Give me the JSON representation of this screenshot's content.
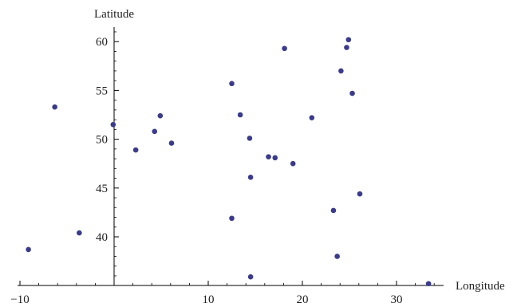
{
  "chart_data": {
    "type": "scatter",
    "xlabel": "Longitude",
    "ylabel": "Latitude",
    "xlim": [
      -11,
      34
    ],
    "ylim": [
      35.2,
      61.5
    ],
    "x_ticks": [
      -10,
      10,
      20,
      30
    ],
    "x_tick_labels": [
      "−10",
      "10",
      "20",
      "30"
    ],
    "y_ticks": [
      40,
      45,
      50,
      55,
      60
    ],
    "y_tick_labels": [
      "40",
      "45",
      "50",
      "55",
      "60"
    ],
    "grid": false,
    "point_color": "#3b3b8c",
    "points": [
      {
        "x": -9.1,
        "y": 38.7
      },
      {
        "x": -6.3,
        "y": 53.3
      },
      {
        "x": -3.7,
        "y": 40.4
      },
      {
        "x": -0.1,
        "y": 51.5
      },
      {
        "x": 2.3,
        "y": 48.9
      },
      {
        "x": 4.3,
        "y": 50.8
      },
      {
        "x": 4.9,
        "y": 52.4
      },
      {
        "x": 6.1,
        "y": 49.6
      },
      {
        "x": 12.5,
        "y": 55.7
      },
      {
        "x": 12.5,
        "y": 41.9
      },
      {
        "x": 13.4,
        "y": 52.5
      },
      {
        "x": 14.4,
        "y": 50.1
      },
      {
        "x": 14.5,
        "y": 46.1
      },
      {
        "x": 14.5,
        "y": 35.9
      },
      {
        "x": 16.4,
        "y": 48.2
      },
      {
        "x": 17.1,
        "y": 48.1
      },
      {
        "x": 18.1,
        "y": 59.3
      },
      {
        "x": 19.0,
        "y": 47.5
      },
      {
        "x": 21.0,
        "y": 52.2
      },
      {
        "x": 23.3,
        "y": 42.7
      },
      {
        "x": 23.7,
        "y": 38.0
      },
      {
        "x": 24.1,
        "y": 57.0
      },
      {
        "x": 24.7,
        "y": 59.4
      },
      {
        "x": 24.9,
        "y": 60.2
      },
      {
        "x": 25.3,
        "y": 54.7
      },
      {
        "x": 26.1,
        "y": 44.4
      },
      {
        "x": 33.4,
        "y": 35.2
      }
    ]
  }
}
